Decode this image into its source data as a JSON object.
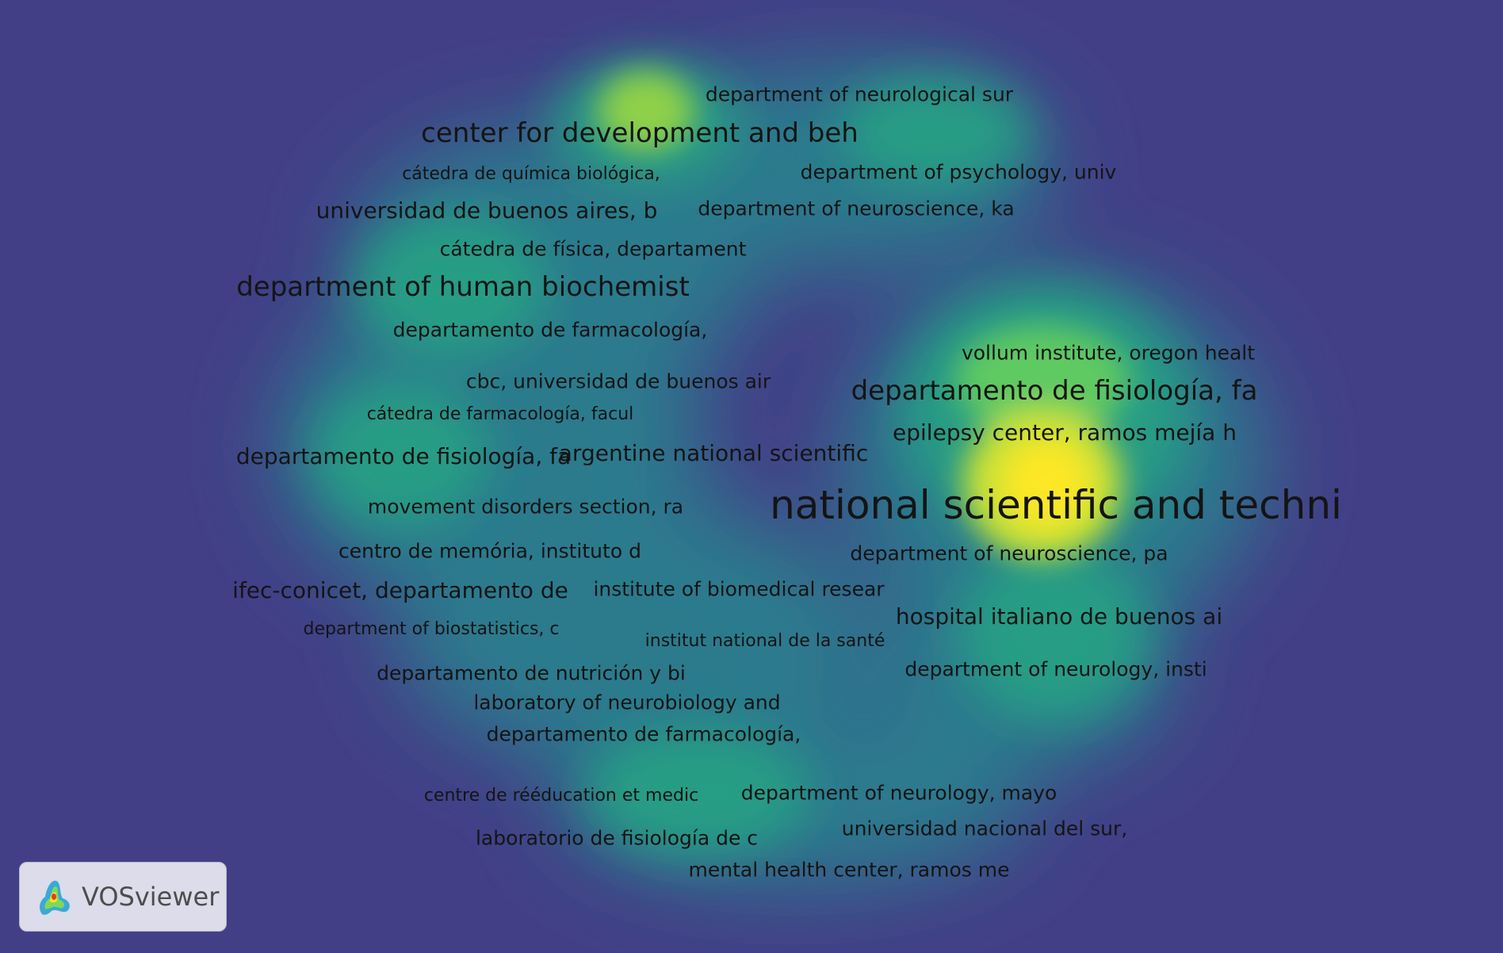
{
  "map": {
    "labels": [
      {
        "text": "national scientific and techni",
        "size": "xl"
      },
      {
        "text": "center for development and beh",
        "size": "l"
      },
      {
        "text": "departamento de fisiología, fa",
        "size": "l"
      },
      {
        "text": "department of human biochemist",
        "size": "l"
      },
      {
        "text": "ifec-conicet, departamento de",
        "size": "ml"
      },
      {
        "text": "hospital italiano de buenos ai",
        "size": "ml"
      },
      {
        "text": "epilepsy center, ramos mejía h",
        "size": "ml"
      },
      {
        "text": "departamento de fisiología, fa",
        "size": "ml"
      },
      {
        "text": "argentine national scientific",
        "size": "ml"
      },
      {
        "text": "universidad de buenos aires, b",
        "size": "ml"
      },
      {
        "text": "department of neurology, insti",
        "size": "m"
      },
      {
        "text": "department of neurology, mayo",
        "size": "m"
      },
      {
        "text": "departamento de farmacología,",
        "size": "m"
      },
      {
        "text": "vollum institute, oregon healt",
        "size": "m"
      },
      {
        "text": "cbc, universidad de buenos air",
        "size": "m"
      },
      {
        "text": "cátedra de física, departament",
        "size": "m"
      },
      {
        "text": "department of neurological sur",
        "size": "m"
      },
      {
        "text": "department of psychology, univ",
        "size": "m"
      },
      {
        "text": "department of neuroscience, ka",
        "size": "m"
      },
      {
        "text": "departamento de farmacología,",
        "size": "m"
      },
      {
        "text": "department of neuroscience, pa",
        "size": "m"
      },
      {
        "text": "institute of biomedical resear",
        "size": "m"
      },
      {
        "text": "centro de memória, instituto d",
        "size": "m"
      },
      {
        "text": "movement disorders section, ra",
        "size": "m"
      },
      {
        "text": "departamento de nutrición y bi",
        "size": "m"
      },
      {
        "text": "laboratory of neurobiology and",
        "size": "m"
      },
      {
        "text": "universidad nacional del sur,",
        "size": "m"
      },
      {
        "text": "mental health center, ramos me",
        "size": "m"
      },
      {
        "text": "laboratorio de fisiología de c",
        "size": "m"
      },
      {
        "text": "institut national de la santé",
        "size": "s"
      },
      {
        "text": "cátedra de química biológica,",
        "size": "s"
      },
      {
        "text": "cátedra de farmacología, facul",
        "size": "s"
      },
      {
        "text": "department of biostatistics, c",
        "size": "s"
      },
      {
        "text": "centre de rééducation et medic",
        "size": "s"
      }
    ],
    "colors": {
      "background": "#433f87",
      "low": "#2e8f8c",
      "mid": "#28b07a",
      "high": "#f7ec1f"
    }
  },
  "branding": {
    "app_name": "VOSviewer"
  }
}
